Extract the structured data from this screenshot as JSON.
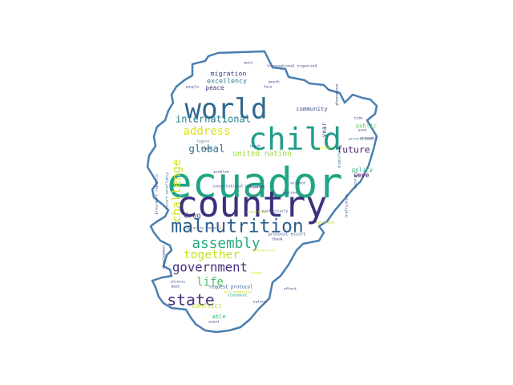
{
  "colors": {
    "outline": "#4a7fb0",
    "background": "#ffffff"
  },
  "words": [
    {
      "text": "ecuador",
      "weight": 1.0,
      "color": "#21a585"
    },
    {
      "text": "country",
      "weight": 0.86,
      "color": "#3b2f7d"
    },
    {
      "text": "child",
      "weight": 0.74,
      "color": "#1f9e89"
    },
    {
      "text": "world",
      "weight": 0.66,
      "color": "#31688e"
    },
    {
      "text": "malnutrition",
      "weight": 0.44,
      "color": "#2d5f8a"
    },
    {
      "text": "state",
      "weight": 0.38,
      "color": "#46307e"
    },
    {
      "text": "assembly",
      "weight": 0.34,
      "color": "#25aa82"
    },
    {
      "text": "government",
      "weight": 0.3,
      "color": "#472f7d"
    },
    {
      "text": "challenge",
      "weight": 0.28,
      "color": "#d2e21b"
    },
    {
      "text": "together",
      "weight": 0.28,
      "color": "#c7e020"
    },
    {
      "text": "address",
      "weight": 0.27,
      "color": "#d8e219"
    },
    {
      "text": "life",
      "weight": 0.27,
      "color": "#4ac16d"
    },
    {
      "text": "global",
      "weight": 0.24,
      "color": "#2c718e"
    },
    {
      "text": "international",
      "weight": 0.23,
      "color": "#26828e"
    },
    {
      "text": "future",
      "weight": 0.22,
      "color": "#482071"
    },
    {
      "text": "united nation",
      "weight": 0.18,
      "color": "#a0da39"
    },
    {
      "text": "drug",
      "weight": 0.17,
      "color": "#3e4a89"
    },
    {
      "text": "excellency",
      "weight": 0.16,
      "color": "#2a788e"
    },
    {
      "text": "migration",
      "weight": 0.16,
      "color": "#414487"
    },
    {
      "text": "peace",
      "weight": 0.15,
      "color": "#443983"
    },
    {
      "text": "conflict",
      "weight": 0.15,
      "color": "#b5de2b"
    },
    {
      "text": "able",
      "weight": 0.14,
      "color": "#35b779"
    },
    {
      "text": "year",
      "weight": 0.15,
      "color": "#3e4a89"
    },
    {
      "text": "community",
      "weight": 0.14,
      "color": "#3b528b"
    },
    {
      "text": "public",
      "weight": 0.14,
      "color": "#5ec962"
    },
    {
      "text": "policy",
      "weight": 0.14,
      "color": "#2fb47c"
    },
    {
      "text": "weve",
      "weight": 0.15,
      "color": "#440154"
    },
    {
      "text": "request protocol",
      "weight": 0.11,
      "color": "#365c8d"
    },
    {
      "text": "protocol escort",
      "weight": 0.1,
      "color": "#3b528b"
    },
    {
      "text": "president republic",
      "weight": 0.09,
      "color": "#404588"
    },
    {
      "text": "escort excellency",
      "weight": 0.08,
      "color": "#31688e"
    },
    {
      "text": "development",
      "weight": 0.07,
      "color": "#3e4a89"
    },
    {
      "text": "constitutional president",
      "weight": 0.07,
      "color": "#3b528b"
    },
    {
      "text": "security council",
      "weight": 0.07,
      "color": "#3e4a89"
    },
    {
      "text": "dignified",
      "weight": 0.08,
      "color": "#2c728e"
    },
    {
      "text": "trafficking",
      "weight": 0.08,
      "color": "#404588"
    },
    {
      "text": "prioritized",
      "weight": 0.07,
      "color": "#2a788e"
    },
    {
      "text": "towards",
      "weight": 0.07,
      "color": "#433e85"
    },
    {
      "text": "statement",
      "weight": 0.07,
      "color": "#22a884"
    },
    {
      "text": "chronic",
      "weight": 0.07,
      "color": "#3b528b"
    },
    {
      "text": "environmental",
      "weight": 0.06,
      "color": "#d0e11c"
    },
    {
      "text": "problem",
      "weight": 0.07,
      "color": "#3e4a89"
    },
    {
      "text": "particularly",
      "weight": 0.07,
      "color": "#3b528b"
    },
    {
      "text": "thank",
      "weight": 0.07,
      "color": "#3e4a89"
    },
    {
      "text": "face",
      "weight": 0.06,
      "color": "#3e4a89"
    },
    {
      "text": "must",
      "weight": 0.06,
      "color": "#3e4a89"
    },
    {
      "text": "people",
      "weight": 0.06,
      "color": "#3e4a89"
    },
    {
      "text": "month",
      "weight": 0.06,
      "color": "#3e4a89"
    },
    {
      "text": "time",
      "weight": 0.06,
      "color": "#3e4a89"
    },
    {
      "text": "even",
      "weight": 0.06,
      "color": "#3e4a89"
    },
    {
      "text": "economic",
      "weight": 0.06,
      "color": "#3e4a89"
    },
    {
      "text": "figure",
      "weight": 0.06,
      "color": "#31688e"
    },
    {
      "text": "debt",
      "weight": 0.06,
      "color": "#3e4a89"
    },
    {
      "text": "event",
      "weight": 0.06,
      "color": "#3e4a89"
    },
    {
      "text": "galapagos",
      "weight": 0.06,
      "color": "#b5de2b"
    },
    {
      "text": "protection",
      "weight": 0.06,
      "color": "#d8e219"
    },
    {
      "text": "experience",
      "weight": 0.06,
      "color": "#b5de2b"
    },
    {
      "text": "human",
      "weight": 0.06,
      "color": "#3b528b"
    },
    {
      "text": "without",
      "weight": 0.06,
      "color": "#3b528b"
    },
    {
      "text": "reach",
      "weight": 0.06,
      "color": "#3b528b"
    },
    {
      "text": "security",
      "weight": 0.06,
      "color": "#3b528b"
    },
    {
      "text": "transnational organized",
      "weight": 0.05,
      "color": "#3e4a89"
    },
    {
      "text": "phenomenon",
      "weight": 0.05,
      "color": "#3e4a89"
    },
    {
      "text": "citizen",
      "weight": 0.05,
      "color": "#d8e219"
    },
    {
      "text": "action",
      "weight": 0.05,
      "color": "#3e4a89"
    },
    {
      "text": "there",
      "weight": 0.05,
      "color": "#d8e219"
    },
    {
      "text": "nature",
      "weight": 0.05,
      "color": "#3e4a89"
    },
    {
      "text": "effort",
      "weight": 0.05,
      "color": "#3e4a89"
    }
  ]
}
